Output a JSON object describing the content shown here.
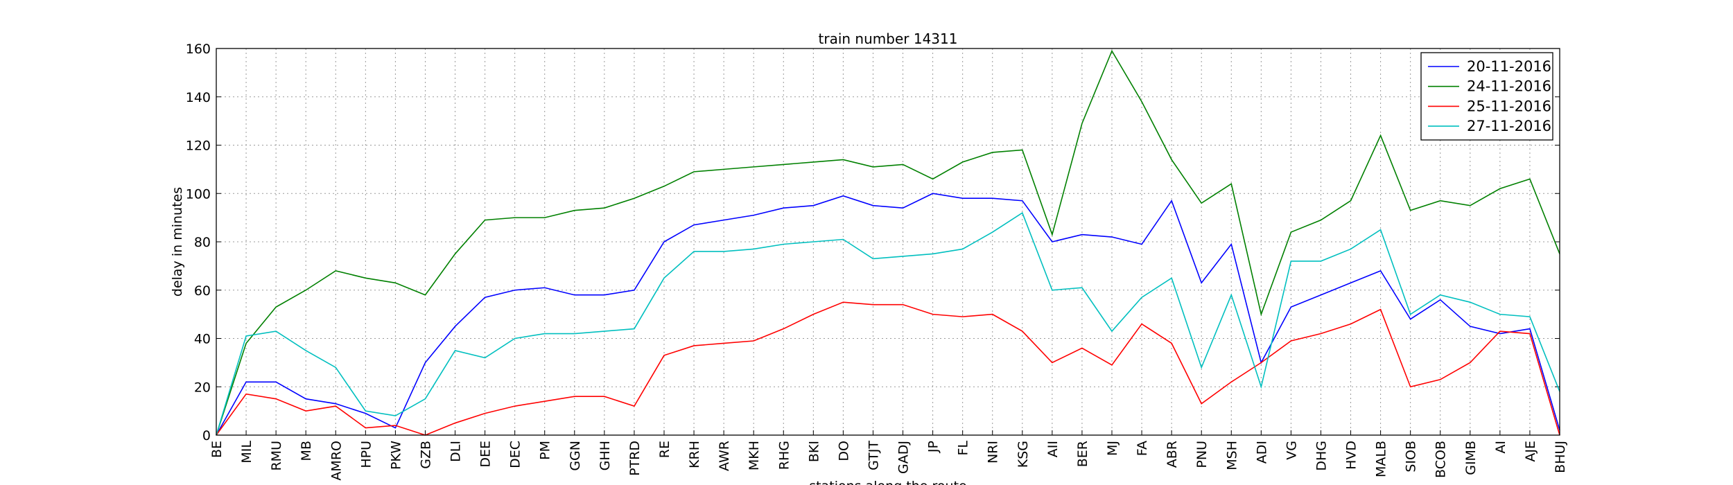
{
  "chart_data": {
    "type": "line",
    "title": "train number 14311",
    "x_label": "stations along the route",
    "y_label": "delay in minutes",
    "categories": [
      "BE",
      "MIL",
      "RMU",
      "MB",
      "AMRO",
      "HPU",
      "PKW",
      "GZB",
      "DLI",
      "DEE",
      "DEC",
      "PM",
      "GGN",
      "GHH",
      "PTRD",
      "RE",
      "KRH",
      "AWR",
      "MKH",
      "RHG",
      "BKI",
      "DO",
      "GTJT",
      "GADJ",
      "JP",
      "FL",
      "NRI",
      "KSG",
      "AII",
      "BER",
      "MJ",
      "FA",
      "ABR",
      "PNU",
      "MSH",
      "ADI",
      "VG",
      "DHG",
      "HVD",
      "MALB",
      "SIOB",
      "BCOB",
      "GIMB",
      "AI",
      "AJE",
      "BHUJ"
    ],
    "series": [
      {
        "name": "20-11-2016",
        "color": "#0000ff",
        "values": [
          0,
          22,
          22,
          15,
          13,
          9,
          3,
          30,
          45,
          57,
          60,
          61,
          58,
          58,
          60,
          80,
          87,
          89,
          91,
          94,
          95,
          99,
          95,
          94,
          100,
          98,
          98,
          97,
          80,
          83,
          82,
          79,
          97,
          63,
          79,
          30,
          53,
          58,
          63,
          68,
          48,
          56,
          45,
          42,
          44,
          2
        ]
      },
      {
        "name": "24-11-2016",
        "color": "#008000",
        "values": [
          0,
          38,
          53,
          60,
          68,
          65,
          63,
          58,
          75,
          89,
          90,
          90,
          93,
          94,
          98,
          103,
          109,
          110,
          111,
          112,
          113,
          114,
          111,
          112,
          106,
          113,
          117,
          118,
          83,
          129,
          159,
          138,
          114,
          96,
          104,
          50,
          84,
          89,
          97,
          124,
          93,
          97,
          95,
          102,
          106,
          75
        ]
      },
      {
        "name": "25-11-2016",
        "color": "#ff0000",
        "values": [
          0,
          17,
          15,
          10,
          12,
          3,
          4,
          0,
          5,
          9,
          12,
          14,
          16,
          16,
          12,
          33,
          37,
          38,
          39,
          44,
          50,
          55,
          54,
          54,
          50,
          49,
          50,
          43,
          30,
          36,
          29,
          46,
          38,
          13,
          22,
          30,
          39,
          42,
          46,
          52,
          20,
          23,
          30,
          43,
          42,
          0
        ]
      },
      {
        "name": "27-11-2016",
        "color": "#00bfbf",
        "values": [
          0,
          41,
          43,
          35,
          28,
          10,
          8,
          15,
          35,
          32,
          40,
          42,
          42,
          43,
          44,
          65,
          76,
          76,
          77,
          79,
          80,
          81,
          73,
          74,
          75,
          77,
          84,
          92,
          60,
          61,
          43,
          57,
          65,
          28,
          58,
          20,
          72,
          72,
          77,
          85,
          50,
          58,
          55,
          50,
          49,
          18
        ]
      }
    ],
    "ylim": [
      0,
      160
    ],
    "yticks": [
      0,
      20,
      40,
      60,
      80,
      100,
      120,
      140,
      160
    ],
    "grid": true,
    "legend": "upper right"
  }
}
